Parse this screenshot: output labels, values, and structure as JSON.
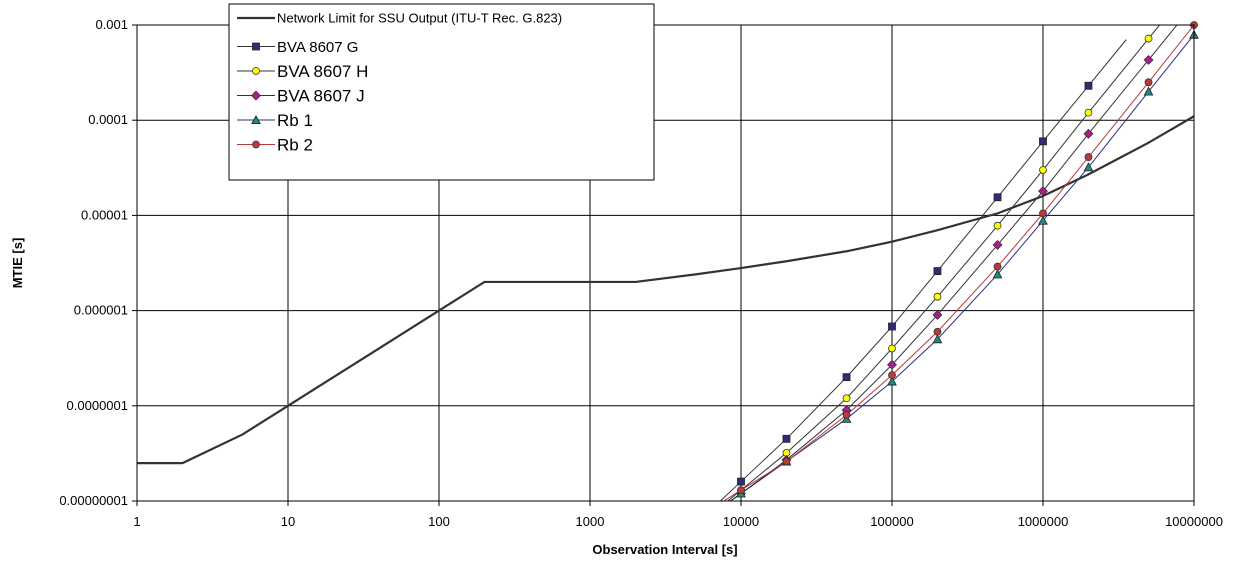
{
  "chart_data": {
    "type": "line",
    "xlabel": "Observation Interval [s]",
    "ylabel": "MTIE [s]",
    "xscale": "log",
    "yscale": "log",
    "xlim": [
      1,
      10000000
    ],
    "ylim": [
      1e-08,
      0.001
    ],
    "grid": true,
    "legend_position": "top-left",
    "x_ticks": [
      1,
      10,
      100,
      1000,
      10000,
      100000,
      1000000,
      10000000
    ],
    "x_tick_labels": [
      "1",
      "10",
      "100",
      "1000",
      "10000",
      "100000",
      "1000000",
      "10000000"
    ],
    "y_ticks": [
      1e-08,
      1e-07,
      1e-06,
      1e-05,
      0.0001,
      0.001
    ],
    "y_tick_labels": [
      "0.00000001",
      "0.0000001",
      "0.000001",
      "0.00001",
      "0.0001",
      "0.001"
    ],
    "series": [
      {
        "name": "Network Limit for SSU Output (ITU-T Rec. G.823)",
        "color": "#333333",
        "marker": "none",
        "points": [
          [
            1,
            2.5e-08
          ],
          [
            2,
            2.5e-08
          ],
          [
            5,
            5e-08
          ],
          [
            10,
            1e-07
          ],
          [
            100,
            1e-06
          ],
          [
            200,
            2e-06
          ],
          [
            2000,
            2e-06
          ],
          [
            5000,
            2.4e-06
          ],
          [
            10000,
            2.8e-06
          ],
          [
            20000,
            3.3e-06
          ],
          [
            50000,
            4.2e-06
          ],
          [
            100000,
            5.3e-06
          ],
          [
            200000,
            7e-06
          ],
          [
            500000,
            1.05e-05
          ],
          [
            1000000,
            1.6e-05
          ],
          [
            2000000,
            2.7e-05
          ],
          [
            5000000,
            5.8e-05
          ],
          [
            10000000,
            0.00011
          ]
        ]
      },
      {
        "name": "BVA 8607 G",
        "color": "#2e2e78",
        "marker": "square",
        "line_color": "#333333",
        "points": [
          [
            10000,
            1.6e-08
          ],
          [
            20000,
            4.5e-08
          ],
          [
            50000,
            2e-07
          ],
          [
            100000,
            6.8e-07
          ],
          [
            200000,
            2.6e-06
          ],
          [
            500000,
            1.55e-05
          ],
          [
            1000000,
            6e-05
          ],
          [
            2000000,
            0.00023
          ]
        ]
      },
      {
        "name": "BVA 8607 H",
        "color": "#ffff00",
        "marker": "circle",
        "line_color": "#333333",
        "points": [
          [
            10000,
            1.3e-08
          ],
          [
            20000,
            3.2e-08
          ],
          [
            50000,
            1.2e-07
          ],
          [
            100000,
            4e-07
          ],
          [
            200000,
            1.4e-06
          ],
          [
            500000,
            7.8e-06
          ],
          [
            1000000,
            3e-05
          ],
          [
            2000000,
            0.00012
          ],
          [
            5000000,
            0.00072
          ]
        ]
      },
      {
        "name": "BVA 8607 J",
        "color": "#b01a8c",
        "marker": "diamond",
        "line_color": "#333333",
        "points": [
          [
            10000,
            1.2e-08
          ],
          [
            20000,
            2.7e-08
          ],
          [
            50000,
            9e-08
          ],
          [
            100000,
            2.7e-07
          ],
          [
            200000,
            9e-07
          ],
          [
            500000,
            4.9e-06
          ],
          [
            1000000,
            1.8e-05
          ],
          [
            2000000,
            7.2e-05
          ],
          [
            5000000,
            0.00043
          ]
        ]
      },
      {
        "name": "Rb 1",
        "color": "#1f8a80",
        "marker": "triangle",
        "line_color": "#2e2e78",
        "points": [
          [
            10000,
            1.2e-08
          ],
          [
            20000,
            2.6e-08
          ],
          [
            50000,
            7.3e-08
          ],
          [
            100000,
            1.8e-07
          ],
          [
            200000,
            5e-07
          ],
          [
            500000,
            2.4e-06
          ],
          [
            1000000,
            8.8e-06
          ],
          [
            2000000,
            3.2e-05
          ],
          [
            5000000,
            0.0002
          ],
          [
            10000000,
            0.00079
          ]
        ]
      },
      {
        "name": "Rb 2",
        "color": "#b83a3a",
        "marker": "circle",
        "line_color": "#b83a3a",
        "points": [
          [
            10000,
            1.3e-08
          ],
          [
            20000,
            2.6e-08
          ],
          [
            50000,
            8e-08
          ],
          [
            100000,
            2.1e-07
          ],
          [
            200000,
            6e-07
          ],
          [
            500000,
            2.9e-06
          ],
          [
            1000000,
            1.05e-05
          ],
          [
            2000000,
            4.1e-05
          ],
          [
            5000000,
            0.00025
          ],
          [
            10000000,
            0.001
          ]
        ]
      }
    ]
  }
}
